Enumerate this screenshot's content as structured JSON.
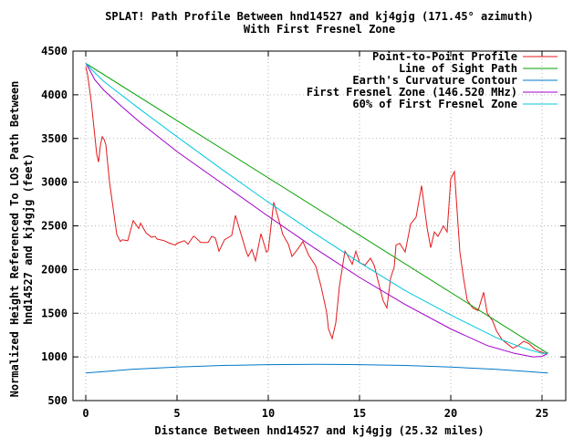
{
  "chart_data": {
    "type": "line",
    "title": "SPLAT! Path Profile Between hnd14527 and kj4gjg (171.45° azimuth)",
    "subtitle": "With First Fresnel Zone",
    "xlabel": "Distance Between hnd14527 and kj4gjg (25.32 miles)",
    "ylabel_line1": "Normalized Height Referenced To LOS Path Between",
    "ylabel_line2": "hnd14527 and kj4gjg (feet)",
    "xlim": [
      -0.7,
      26.3
    ],
    "ylim": [
      500,
      4500
    ],
    "xticks": [
      0,
      5,
      10,
      15,
      20,
      25
    ],
    "yticks": [
      500,
      1000,
      1500,
      2000,
      2500,
      3000,
      3500,
      4000,
      4500
    ],
    "grid": true,
    "legend_position": "top-right",
    "series": [
      {
        "name": "Point-to-Point Profile",
        "color": "#e41a1c",
        "x": [
          0,
          0.1,
          0.3,
          0.5,
          0.6,
          0.7,
          0.8,
          0.9,
          1.0,
          1.1,
          1.3,
          1.4,
          1.5,
          1.7,
          1.9,
          2.0,
          2.3,
          2.6,
          2.9,
          3.0,
          3.3,
          3.6,
          3.8,
          3.9,
          4.3,
          4.6,
          4.9,
          5.0,
          5.4,
          5.6,
          5.9,
          6.0,
          6.3,
          6.7,
          6.9,
          7.1,
          7.3,
          7.6,
          8.0,
          8.2,
          8.4,
          8.8,
          8.9,
          9.1,
          9.3,
          9.6,
          9.9,
          10.0,
          10.3,
          10.6,
          10.8,
          11.1,
          11.3,
          11.6,
          11.9,
          12.2,
          12.6,
          12.9,
          13.2,
          13.3,
          13.5,
          13.7,
          13.9,
          14.2,
          14.3,
          14.5,
          14.6,
          14.8,
          15.0,
          15.3,
          15.6,
          15.8,
          16.1,
          16.3,
          16.5,
          16.7,
          16.9,
          17.0,
          17.2,
          17.5,
          17.8,
          18.1,
          18.4,
          18.7,
          18.9,
          19.1,
          19.3,
          19.6,
          19.8,
          20.0,
          20.2,
          20.5,
          20.7,
          20.9,
          21.2,
          21.5,
          21.8,
          22.0,
          22.3,
          22.5,
          22.8,
          23.1,
          23.4,
          23.7,
          24.0,
          24.3,
          24.6,
          24.9,
          25.2,
          25.32
        ],
        "values": [
          4320,
          4230,
          3920,
          3520,
          3320,
          3230,
          3420,
          3520,
          3490,
          3430,
          3000,
          2850,
          2700,
          2400,
          2320,
          2340,
          2330,
          2560,
          2470,
          2530,
          2420,
          2370,
          2380,
          2350,
          2330,
          2300,
          2280,
          2300,
          2330,
          2290,
          2380,
          2370,
          2310,
          2310,
          2380,
          2360,
          2210,
          2340,
          2390,
          2620,
          2480,
          2200,
          2150,
          2230,
          2100,
          2410,
          2200,
          2220,
          2770,
          2550,
          2400,
          2290,
          2150,
          2230,
          2320,
          2170,
          2040,
          1800,
          1510,
          1320,
          1210,
          1390,
          1810,
          2210,
          2180,
          2100,
          2060,
          2210,
          2080,
          2050,
          2130,
          2050,
          1800,
          1640,
          1560,
          1900,
          2030,
          2280,
          2300,
          2200,
          2520,
          2600,
          2960,
          2480,
          2250,
          2430,
          2380,
          2500,
          2430,
          3040,
          3120,
          2200,
          1900,
          1650,
          1560,
          1530,
          1740,
          1500,
          1410,
          1300,
          1200,
          1150,
          1100,
          1130,
          1180,
          1150,
          1090,
          1060,
          1040,
          1050
        ]
      },
      {
        "name": "Line of Sight Path",
        "color": "#00a000",
        "x": [
          0,
          25.32
        ],
        "values": [
          4360,
          1040
        ]
      },
      {
        "name": "Earth's Curvature Contour",
        "color": "#0078c8",
        "x": [
          0,
          2.5,
          5,
          7.5,
          10,
          12.66,
          15,
          17.5,
          20,
          22.5,
          25.32
        ],
        "values": [
          815,
          857,
          883,
          902,
          912,
          915,
          912,
          902,
          883,
          857,
          815
        ]
      },
      {
        "name": "First Fresnel Zone (146.520 MHz)",
        "color": "#a000c8",
        "x": [
          0,
          0.25,
          0.5,
          1,
          2,
          3,
          5,
          7.5,
          10,
          12.5,
          15,
          17.5,
          20,
          22,
          23.5,
          24.5,
          25,
          25.32
        ],
        "values": [
          4360,
          4270,
          4170,
          4050,
          3860,
          3680,
          3350,
          2980,
          2610,
          2250,
          1910,
          1600,
          1320,
          1130,
          1040,
          1000,
          1005,
          1040
        ]
      },
      {
        "name": "60% of First Fresnel Zone",
        "color": "#00c8e0",
        "x": [
          0,
          0.5,
          1,
          2,
          3,
          5,
          7.5,
          10,
          12.5,
          15,
          17.5,
          20,
          22.5,
          24,
          25,
          25.32
        ],
        "values": [
          4360,
          4250,
          4150,
          3990,
          3830,
          3520,
          3140,
          2770,
          2420,
          2080,
          1760,
          1480,
          1220,
          1100,
          1040,
          1040
        ]
      }
    ]
  }
}
